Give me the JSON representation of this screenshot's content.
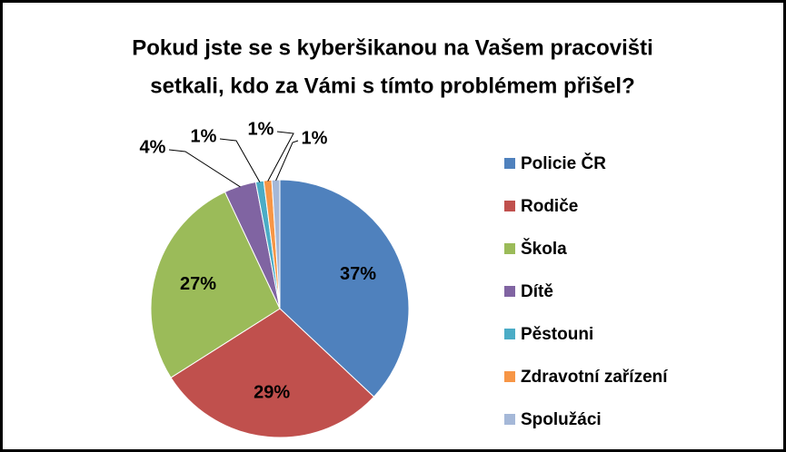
{
  "chart_data": {
    "type": "pie",
    "title": [
      "Pokud jste se s kyberšikanou na Vašem pracovišti",
      "setkali, kdo za Vámi s tímto problémem přišel?"
    ],
    "categories": [
      "Policie ČR",
      "Rodiče",
      "Škola",
      "Dítě",
      "Pěstouni",
      "Zdravotní zařízení",
      "Spolužáci"
    ],
    "values": [
      37,
      29,
      27,
      4,
      1,
      1,
      1
    ],
    "value_labels": [
      "37%",
      "29%",
      "27%",
      "4%",
      "1%",
      "1%",
      "1%"
    ],
    "colors": [
      "#4f81bd",
      "#c0504d",
      "#9bbb59",
      "#8064a2",
      "#4bacc6",
      "#f79646",
      "#a5b8d8"
    ],
    "legend": "right"
  }
}
